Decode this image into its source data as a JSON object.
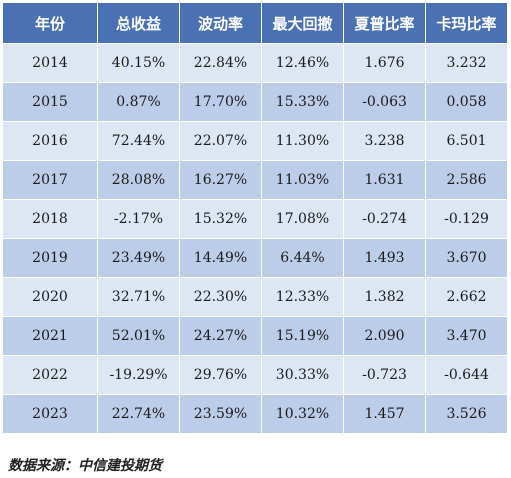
{
  "table": {
    "headers": [
      "年份",
      "总收益",
      "波动率",
      "最大回撤",
      "夏普比率",
      "卡玛比率"
    ],
    "rows": [
      [
        "2014",
        "40.15%",
        "22.84%",
        "12.46%",
        "1.676",
        "3.232"
      ],
      [
        "2015",
        "0.87%",
        "17.70%",
        "15.33%",
        "-0.063",
        "0.058"
      ],
      [
        "2016",
        "72.44%",
        "22.07%",
        "11.30%",
        "3.238",
        "6.501"
      ],
      [
        "2017",
        "28.08%",
        "16.27%",
        "11.03%",
        "1.631",
        "2.586"
      ],
      [
        "2018",
        "-2.17%",
        "15.32%",
        "17.08%",
        "-0.274",
        "-0.129"
      ],
      [
        "2019",
        "23.49%",
        "14.49%",
        "6.44%",
        "1.493",
        "3.670"
      ],
      [
        "2020",
        "32.71%",
        "22.30%",
        "12.33%",
        "1.382",
        "2.662"
      ],
      [
        "2021",
        "52.01%",
        "24.27%",
        "15.19%",
        "2.090",
        "3.470"
      ],
      [
        "2022",
        "-19.29%",
        "29.76%",
        "30.33%",
        "-0.723",
        "-0.644"
      ],
      [
        "2023",
        "22.74%",
        "23.59%",
        "10.32%",
        "1.457",
        "3.526"
      ]
    ]
  },
  "source": "数据来源：中信建投期货",
  "colors": {
    "header_bg": "#4a71b3",
    "row_light": "#dde6f3",
    "row_dark": "#bccde9"
  }
}
